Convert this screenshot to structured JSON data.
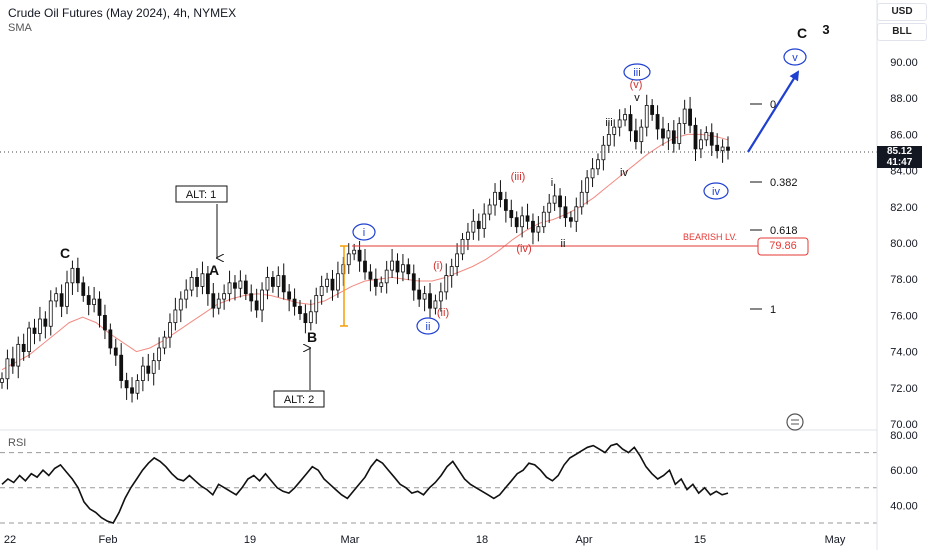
{
  "header": {
    "title": "Crude Oil Futures (May 2024), 4h, NYMEX",
    "indicator": "SMA",
    "rsi_label": "RSI"
  },
  "axis_buttons": {
    "currency": "USD",
    "unit": "BLL"
  },
  "price_tag": {
    "price": "85.12",
    "countdown": "41:47"
  },
  "bearish": {
    "label": "BEARISH LV.",
    "value": "79.86"
  },
  "chart_data": [
    {
      "type": "line",
      "title": "Crude Oil Futures (May 2024), 4h, NYMEX",
      "ylim": [
        70,
        92
      ],
      "y_ticks": [
        "70.00",
        "72.00",
        "74.00",
        "76.00",
        "78.00",
        "80.00",
        "82.00",
        "84.00",
        "86.00",
        "88.00",
        "90.00"
      ],
      "x_ticks": [
        "22",
        "Feb",
        "19",
        "Mar",
        "18",
        "Apr",
        "15",
        "May"
      ],
      "series": [
        {
          "name": "",
          "values": [
            72.5,
            73.6,
            73.2,
            74.4,
            74.0,
            75.3,
            75.0,
            75.8,
            75.4,
            76.8,
            77.2,
            76.5,
            77.8,
            78.6,
            77.8,
            77.1,
            76.6,
            76.9,
            76.0,
            75.2,
            74.2,
            73.8,
            72.4,
            72.0,
            71.7,
            72.4,
            73.2,
            72.8,
            73.5,
            74.2,
            74.8,
            75.6,
            76.3,
            76.9,
            77.4,
            78.1,
            77.6,
            78.3,
            77.2,
            76.4,
            76.9,
            77.2,
            77.8,
            77.5,
            77.9,
            77.2,
            76.8,
            76.3,
            77.4,
            78.1,
            77.6,
            78.2,
            77.3,
            76.9,
            76.5,
            76.1,
            75.6,
            76.2,
            77.1,
            77.6,
            78.0,
            77.4,
            78.3,
            78.8,
            79.4,
            79.6,
            79.0,
            78.4,
            78.0,
            77.6,
            77.8,
            78.5,
            79.0,
            78.4,
            78.8,
            78.3,
            77.4,
            76.9,
            77.2,
            76.4,
            76.8,
            77.3,
            78.2,
            78.7,
            79.4,
            80.2,
            80.6,
            81.2,
            80.8,
            81.6,
            82.1,
            82.8,
            82.4,
            81.8,
            81.4,
            80.9,
            81.5,
            81.2,
            80.6,
            80.9,
            81.7,
            82.2,
            82.6,
            82.0,
            81.4,
            81.2,
            82.0,
            82.8,
            83.6,
            84.1,
            84.6,
            85.4,
            86.0,
            86.4,
            86.8,
            87.1,
            86.2,
            85.6,
            86.4,
            87.6,
            87.1,
            86.3,
            85.8,
            86.2,
            85.5,
            86.6,
            87.4,
            86.5,
            85.2,
            85.7,
            86.1,
            85.4,
            85.1,
            85.3,
            85.12
          ]
        },
        {
          "name": "SMA",
          "values": [
            73.0,
            73.4,
            73.8,
            74.4,
            75.0,
            75.6,
            75.9,
            75.6,
            75.0,
            74.5,
            74.0,
            74.2,
            74.6,
            75.1,
            75.6,
            76.1,
            76.6,
            76.9,
            77.1,
            77.2,
            77.1,
            76.9,
            76.7,
            76.6,
            76.8,
            77.2,
            77.6,
            77.9,
            78.0,
            78.1,
            78.0,
            77.9,
            77.9,
            78.1,
            78.4,
            78.7,
            79.1,
            79.6,
            80.2,
            80.7,
            81.1,
            81.3,
            81.6,
            82.0,
            82.5,
            83.1,
            83.7,
            84.3,
            84.9,
            85.4,
            85.8,
            86.0,
            86.0,
            85.9,
            85.7
          ]
        }
      ],
      "waves": [
        "C",
        "A",
        "B",
        "ALT: 1",
        "ALT: 2",
        "i",
        "(i)",
        "ii",
        "(ii)",
        "(iii)",
        "(iv)",
        "i",
        "ii",
        "iii",
        "iii",
        "(v)",
        "v",
        "iv",
        "iv",
        "v",
        "C",
        "3"
      ],
      "fib_levels": [
        "0",
        "0.382",
        "0.618",
        "1"
      ]
    },
    {
      "type": "line",
      "title": "RSI",
      "ylim": [
        30,
        80
      ],
      "y_ticks": [
        "40.00",
        "60.00",
        "80.00"
      ],
      "bands": [
        30,
        50,
        70
      ],
      "series": [
        {
          "name": "",
          "values": [
            52,
            55,
            53,
            57,
            54,
            58,
            56,
            60,
            57,
            61,
            63,
            59,
            55,
            50,
            42,
            38,
            36,
            33,
            31,
            30,
            36,
            44,
            50,
            55,
            60,
            64,
            67,
            65,
            62,
            58,
            55,
            54,
            57,
            54,
            51,
            49,
            46,
            52,
            50,
            48,
            46,
            50,
            55,
            57,
            54,
            58,
            54,
            50,
            48,
            47,
            50,
            54,
            58,
            62,
            60,
            55,
            52,
            49,
            46,
            44,
            48,
            52,
            56,
            62,
            66,
            64,
            60,
            56,
            52,
            50,
            47,
            48,
            46,
            50,
            53,
            57,
            62,
            65,
            60,
            55,
            52,
            50,
            48,
            46,
            44,
            46,
            50,
            54,
            58,
            60,
            64,
            63,
            60,
            56,
            54,
            57,
            63,
            67,
            69,
            71,
            73,
            74,
            72,
            70,
            74,
            75,
            72,
            70,
            73,
            68,
            62,
            58,
            55,
            57,
            60,
            52,
            55,
            49,
            52,
            47,
            50,
            46,
            48,
            46,
            47
          ]
        }
      ]
    }
  ]
}
